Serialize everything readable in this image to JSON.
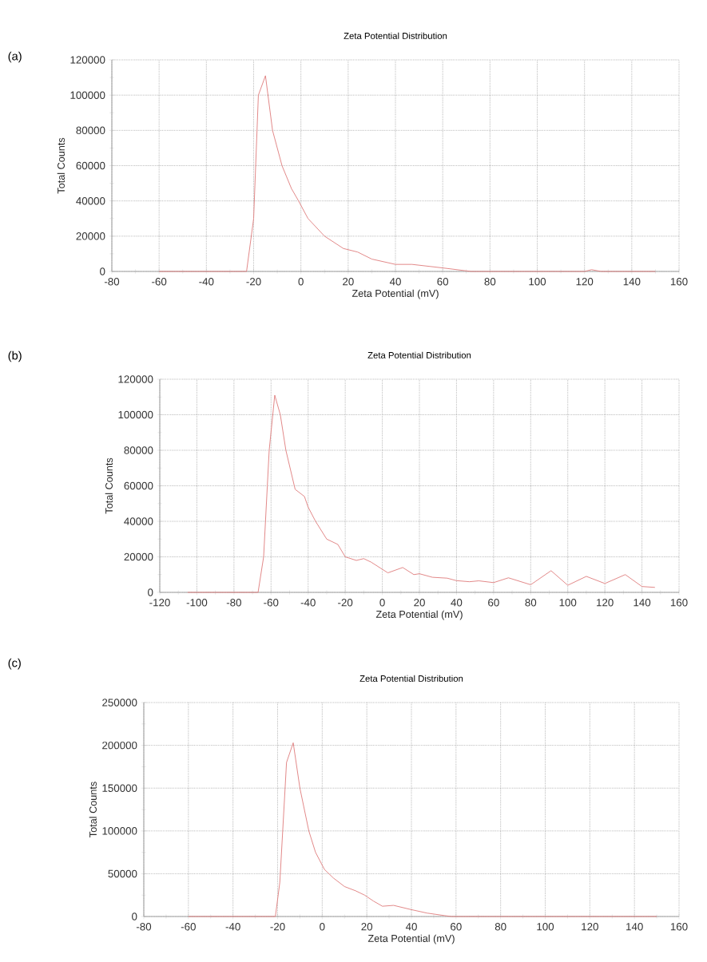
{
  "chart_data": [
    {
      "type": "line",
      "title": "Zeta Potential Distribution",
      "xlabel": "Zeta Potential (mV)",
      "ylabel": "Total Counts",
      "annotations": [
        "(a)"
      ],
      "color": "#e08080",
      "grid": true,
      "x": [
        -60,
        -40,
        -23,
        -20,
        -18,
        -15,
        -12,
        -8,
        -4,
        -1,
        3,
        10,
        18,
        24,
        30,
        40,
        47,
        60,
        72,
        120,
        123,
        127,
        150
      ],
      "values": [
        0,
        0,
        0,
        30000,
        100000,
        111000,
        80000,
        60000,
        47000,
        40000,
        30000,
        20000,
        13000,
        11000,
        7000,
        4000,
        4000,
        2000,
        0,
        0,
        1000,
        0,
        0
      ],
      "xlim": [
        -80,
        160
      ],
      "xticks": [
        -80,
        -60,
        -40,
        -20,
        0,
        20,
        40,
        60,
        80,
        100,
        120,
        140,
        160
      ],
      "ylim": [
        0,
        120000
      ],
      "yticks": [
        0,
        20000,
        40000,
        60000,
        80000,
        100000,
        120000
      ]
    },
    {
      "type": "line",
      "title": "Zeta Potential Distribution",
      "xlabel": "Zeta Potential (mV)",
      "ylabel": "Total Counts",
      "annotations": [
        "(b)"
      ],
      "color": "#e08080",
      "grid": true,
      "x": [
        -105,
        -67,
        -64,
        -61,
        -58,
        -55,
        -52,
        -47,
        -42,
        -40,
        -36,
        -30,
        -24,
        -20,
        -14,
        -10,
        -6,
        0,
        3,
        11,
        17,
        20,
        27,
        35,
        40,
        47,
        52,
        60,
        68,
        80,
        91,
        100,
        110,
        120,
        131,
        140,
        147
      ],
      "values": [
        0,
        0,
        20000,
        80000,
        111000,
        100000,
        80000,
        58000,
        54000,
        48000,
        40000,
        30000,
        27000,
        20000,
        18000,
        19000,
        17000,
        13000,
        11000,
        14000,
        10000,
        10500,
        8500,
        8000,
        6600,
        6000,
        6500,
        5500,
        8200,
        4300,
        12200,
        4000,
        9000,
        5000,
        10000,
        3300,
        2800
      ],
      "xlim": [
        -120,
        160
      ],
      "xticks": [
        -120,
        -100,
        -80,
        -60,
        -40,
        -20,
        0,
        20,
        40,
        60,
        80,
        100,
        120,
        140,
        160
      ],
      "ylim": [
        0,
        120000
      ],
      "yticks": [
        0,
        20000,
        40000,
        60000,
        80000,
        100000,
        120000
      ]
    },
    {
      "type": "line",
      "title": "Zeta Potential Distribution",
      "xlabel": "Zeta Potential (mV)",
      "ylabel": "Total Counts",
      "annotations": [
        "(c)"
      ],
      "color": "#e08080",
      "grid": true,
      "x": [
        -60,
        -40,
        -21,
        -19,
        -16,
        -13,
        -10,
        -6,
        -3,
        1,
        5,
        10,
        15,
        19,
        23,
        27,
        32,
        40,
        47,
        55,
        58,
        150
      ],
      "values": [
        0,
        0,
        0,
        40000,
        180000,
        203000,
        150000,
        100000,
        75000,
        55000,
        45000,
        35000,
        30000,
        25000,
        18000,
        12000,
        13000,
        8000,
        4000,
        1000,
        0,
        0
      ],
      "xlim": [
        -80,
        160
      ],
      "xticks": [
        -80,
        -60,
        -40,
        -20,
        0,
        20,
        40,
        60,
        80,
        100,
        120,
        140,
        160
      ],
      "ylim": [
        0,
        250000
      ],
      "yticks": [
        0,
        50000,
        100000,
        150000,
        200000,
        250000
      ]
    }
  ]
}
